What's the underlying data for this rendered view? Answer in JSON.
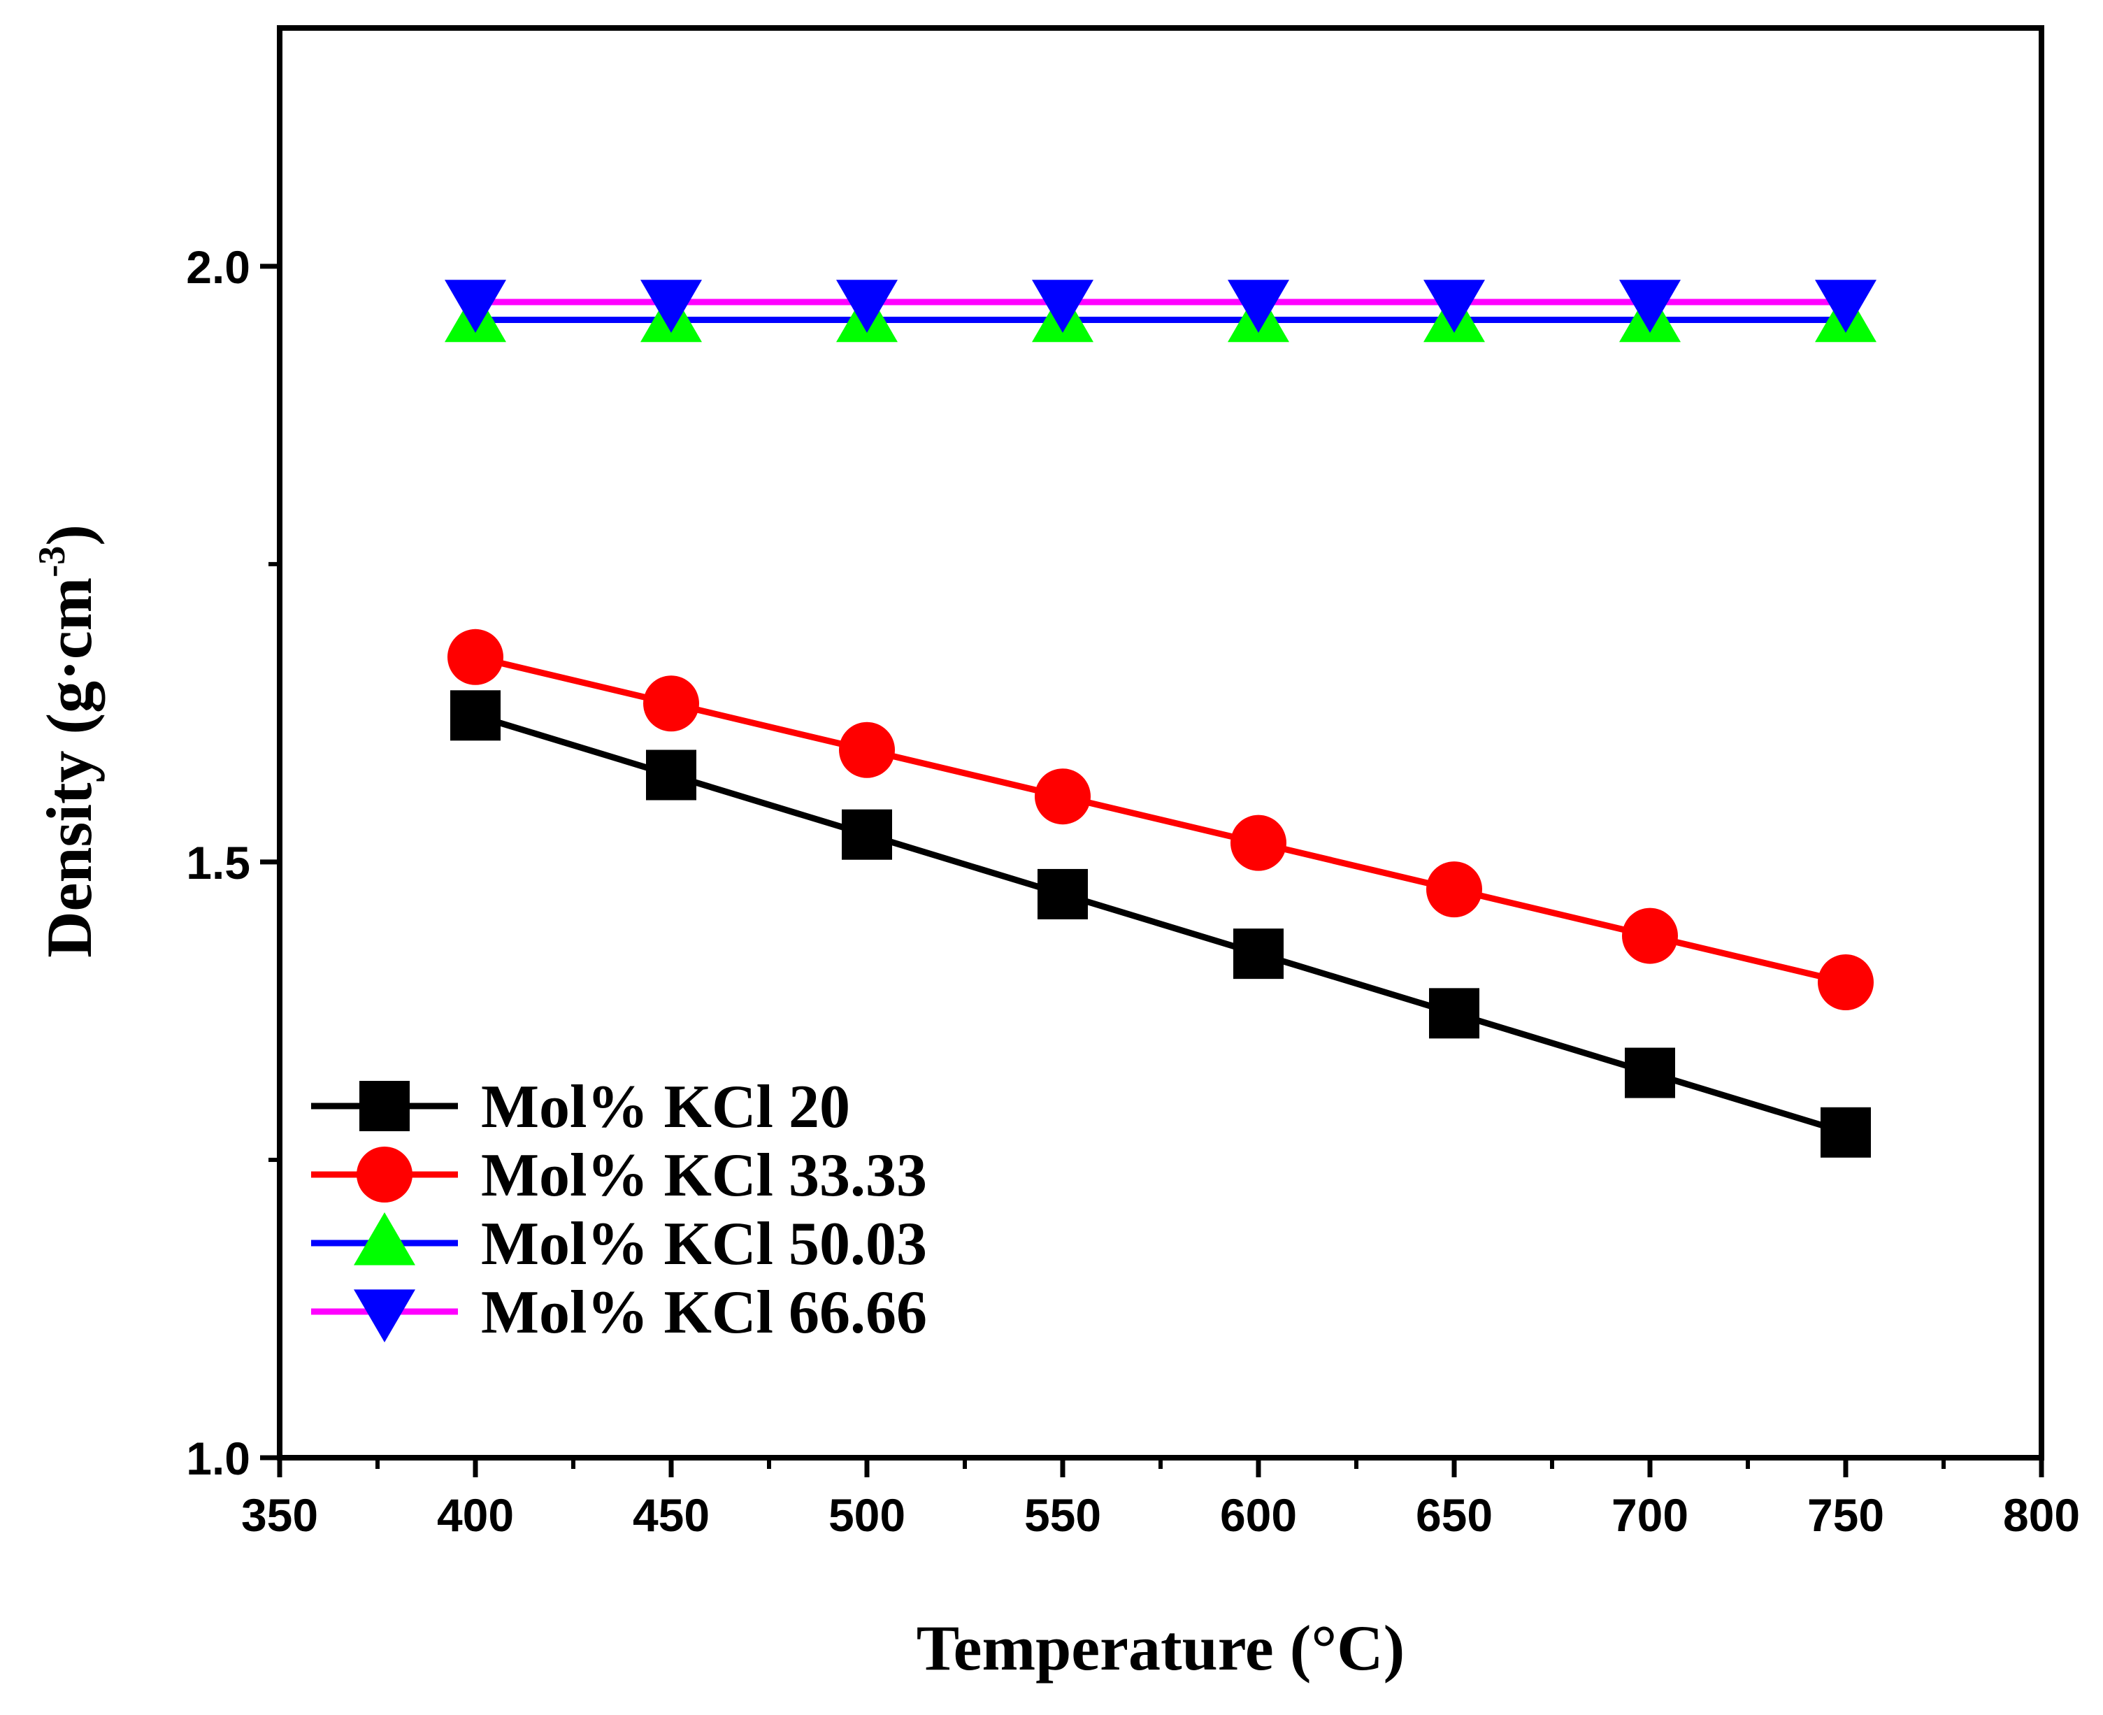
{
  "chart_data": {
    "type": "line",
    "title": "",
    "xlabel": "Temperature (°C)",
    "ylabel_main": "Density (g·cm",
    "ylabel_sup": "-3",
    "ylabel_close": ")",
    "xlim": [
      350,
      800
    ],
    "ylim": [
      1.0,
      2.2
    ],
    "xticks": [
      350,
      400,
      450,
      500,
      550,
      600,
      650,
      700,
      750,
      800
    ],
    "xtick_labels": [
      "350",
      "400",
      "450",
      "500",
      "550",
      "600",
      "650",
      "700",
      "750",
      "800"
    ],
    "yticks": [
      1.0,
      1.5,
      2.0
    ],
    "ytick_labels": [
      "1.0",
      "1.5",
      "2.0"
    ],
    "yminor_ticks": [
      1.25,
      1.75
    ],
    "grid": false,
    "legend_position": "bottom-left",
    "x": [
      400,
      450,
      500,
      550,
      600,
      650,
      700,
      750
    ],
    "series": [
      {
        "name": "Mol% KCl 20",
        "line_color": "#000000",
        "marker": "square",
        "marker_color": "#000000",
        "values": [
          1.623,
          1.573,
          1.523,
          1.473,
          1.423,
          1.373,
          1.323,
          1.273
        ]
      },
      {
        "name": "Mol% KCl 33.33",
        "line_color": "#ff0000",
        "marker": "circle",
        "marker_color": "#ff0000",
        "values": [
          1.672,
          1.633,
          1.594,
          1.555,
          1.516,
          1.477,
          1.438,
          1.399
        ]
      },
      {
        "name": "Mol% KCl 50.03",
        "line_color": "#0000ff",
        "marker": "triangle-up",
        "marker_color": "#00ff00",
        "values": [
          1.955,
          1.955,
          1.955,
          1.955,
          1.955,
          1.955,
          1.955,
          1.955
        ]
      },
      {
        "name": "Mol% KCl 66.66",
        "line_color": "#ff00ff",
        "marker": "triangle-down",
        "marker_color": "#0000ff",
        "values": [
          1.97,
          1.97,
          1.97,
          1.97,
          1.97,
          1.97,
          1.97,
          1.97
        ]
      }
    ]
  }
}
